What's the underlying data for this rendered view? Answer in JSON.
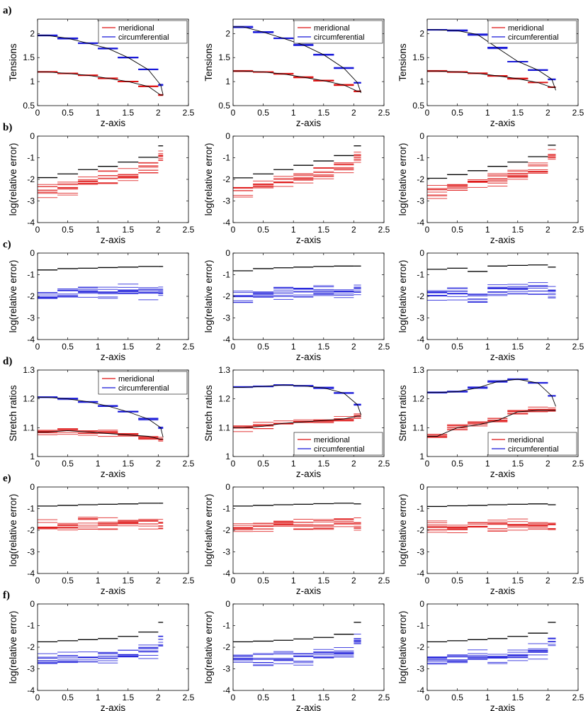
{
  "figure": {
    "colors": {
      "meridional": "#dd1111",
      "circumferential": "#1515d8",
      "reference": "#000000",
      "frame": "#000000"
    },
    "legend_labels": [
      "meridional",
      "circumferential"
    ],
    "rows": [
      {
        "label": "a)",
        "ylabel": "Tensions",
        "ylim": [
          0.5,
          2.3
        ],
        "yticks": [
          "0.5",
          "1",
          "1.5",
          "2"
        ],
        "ytick_values": [
          0.5,
          1,
          1.5,
          2
        ],
        "kind": "tension"
      },
      {
        "label": "b)",
        "ylabel": "log(relative error)",
        "ylim": [
          -4,
          0
        ],
        "yticks": [
          "-4",
          "-3",
          "-2",
          "-1",
          "0"
        ],
        "ytick_values": [
          -4,
          -3,
          -2,
          -1,
          0
        ],
        "kind": "err_red_tension"
      },
      {
        "label": "c)",
        "ylabel": "log(relative error)",
        "ylim": [
          -4,
          0
        ],
        "yticks": [
          "-4",
          "-3",
          "-2",
          "-1",
          "0"
        ],
        "ytick_values": [
          -4,
          -3,
          -2,
          -1,
          0
        ],
        "kind": "err_blue_tension"
      },
      {
        "label": "d)",
        "ylabel": "Stretch ratios",
        "ylim": [
          1,
          1.3
        ],
        "yticks": [
          "1",
          "1.1",
          "1.2",
          "1.3"
        ],
        "ytick_values": [
          1,
          1.1,
          1.2,
          1.3
        ],
        "kind": "stretch"
      },
      {
        "label": "e)",
        "ylabel": "log(relative error)",
        "ylim": [
          -4,
          0
        ],
        "yticks": [
          "-4",
          "-3",
          "-2",
          "-1",
          "0"
        ],
        "ytick_values": [
          -4,
          -3,
          -2,
          -1,
          0
        ],
        "kind": "err_red_stretch"
      },
      {
        "label": "f)",
        "ylabel": "log(relative error)",
        "ylim": [
          -4,
          0
        ],
        "yticks": [
          "-4",
          "-3",
          "-2",
          "-1",
          "0"
        ],
        "ytick_values": [
          -4,
          -3,
          -2,
          -1,
          0
        ],
        "kind": "err_blue_stretch"
      }
    ],
    "xlabel": "z-axis",
    "xlim": [
      0,
      2.5
    ],
    "xticks": [
      "0",
      "0.5",
      "1",
      "1.5",
      "2",
      "2.5"
    ],
    "xtick_values": [
      0,
      0.5,
      1,
      1.5,
      2,
      2.5
    ]
  },
  "chart_data": {
    "type": "line",
    "title": "",
    "xlabel": "z-axis",
    "xlim": [
      0,
      2.5
    ],
    "columns": 3,
    "segment_edges": [
      [
        0,
        0.33,
        0.67,
        1.0,
        1.33,
        1.67,
        2.0,
        2.08
      ],
      [
        0,
        0.33,
        0.67,
        1.0,
        1.33,
        1.67,
        2.0,
        2.12
      ],
      [
        0,
        0.33,
        0.67,
        1.0,
        1.33,
        1.67,
        2.0,
        2.13
      ]
    ],
    "tension": {
      "ylabel": "Tensions",
      "ylim": [
        0.5,
        2.3
      ],
      "meridional_mean": [
        [
          1.2,
          1.17,
          1.13,
          1.07,
          1.0,
          0.9,
          0.72
        ],
        [
          1.22,
          1.2,
          1.16,
          1.09,
          1.02,
          0.93,
          0.8
        ],
        [
          1.22,
          1.2,
          1.17,
          1.12,
          1.06,
          0.98,
          0.88
        ]
      ],
      "circumferential_mean": [
        [
          1.96,
          1.9,
          1.8,
          1.69,
          1.5,
          1.25,
          0.93
        ],
        [
          2.14,
          2.03,
          1.9,
          1.76,
          1.56,
          1.28,
          0.98
        ],
        [
          2.08,
          2.06,
          1.98,
          1.7,
          1.42,
          1.24,
          1.05
        ]
      ]
    },
    "err_red_tension": {
      "ylabel": "log(relative error)",
      "ylim": [
        -4,
        0
      ],
      "reference": [
        [
          -1.92,
          -1.75,
          -1.55,
          -1.4,
          -1.2,
          -0.98,
          -0.45
        ],
        [
          -1.93,
          -1.75,
          -1.55,
          -1.35,
          -1.15,
          -0.9,
          -0.45
        ],
        [
          -1.95,
          -1.78,
          -1.6,
          -1.4,
          -1.2,
          -0.95,
          -0.42
        ]
      ]
    },
    "err_blue_tension": {
      "ylabel": "log(relative error)",
      "ylim": [
        -4,
        0
      ],
      "reference": [
        [
          -0.78,
          -0.72,
          -0.7,
          -0.67,
          -0.65,
          -0.62,
          -0.62
        ],
        [
          -0.82,
          -0.72,
          -0.68,
          -0.65,
          -0.62,
          -0.6,
          -0.6
        ],
        [
          -0.75,
          -0.7,
          -0.85,
          -0.6,
          -0.57,
          -0.55,
          -0.65
        ]
      ]
    },
    "stretch": {
      "ylabel": "Stretch ratios",
      "ylim": [
        1,
        1.3
      ],
      "meridional_mean": [
        [
          1.085,
          1.09,
          1.085,
          1.08,
          1.075,
          1.07,
          1.06
        ],
        [
          1.1,
          1.105,
          1.115,
          1.12,
          1.125,
          1.13,
          1.14
        ],
        [
          1.07,
          1.1,
          1.11,
          1.125,
          1.155,
          1.16,
          1.16
        ]
      ],
      "circumferential_mean": [
        [
          1.205,
          1.2,
          1.19,
          1.175,
          1.155,
          1.13,
          1.1
        ],
        [
          1.24,
          1.243,
          1.248,
          1.245,
          1.238,
          1.22,
          1.18
        ],
        [
          1.222,
          1.225,
          1.238,
          1.26,
          1.268,
          1.255,
          1.21
        ]
      ],
      "legend_position": [
        "top-right",
        "bottom-right",
        "bottom-right"
      ]
    },
    "err_red_stretch": {
      "ylabel": "log(relative error)",
      "ylim": [
        -4,
        0
      ],
      "reference": [
        [
          -0.88,
          -0.85,
          -0.82,
          -0.8,
          -0.78,
          -0.75,
          -0.75
        ],
        [
          -0.88,
          -0.85,
          -0.82,
          -0.8,
          -0.77,
          -0.75,
          -0.78
        ],
        [
          -0.9,
          -0.87,
          -0.85,
          -0.82,
          -0.8,
          -0.78,
          -0.82
        ]
      ]
    },
    "err_blue_stretch": {
      "ylabel": "log(relative error)",
      "ylim": [
        -4,
        0
      ],
      "reference": [
        [
          -1.75,
          -1.7,
          -1.65,
          -1.6,
          -1.5,
          -1.3,
          -0.85
        ],
        [
          -1.75,
          -1.72,
          -1.68,
          -1.62,
          -1.55,
          -1.4,
          -0.85
        ],
        [
          -1.75,
          -1.7,
          -1.65,
          -1.6,
          -1.5,
          -1.35,
          -0.85
        ]
      ]
    }
  }
}
